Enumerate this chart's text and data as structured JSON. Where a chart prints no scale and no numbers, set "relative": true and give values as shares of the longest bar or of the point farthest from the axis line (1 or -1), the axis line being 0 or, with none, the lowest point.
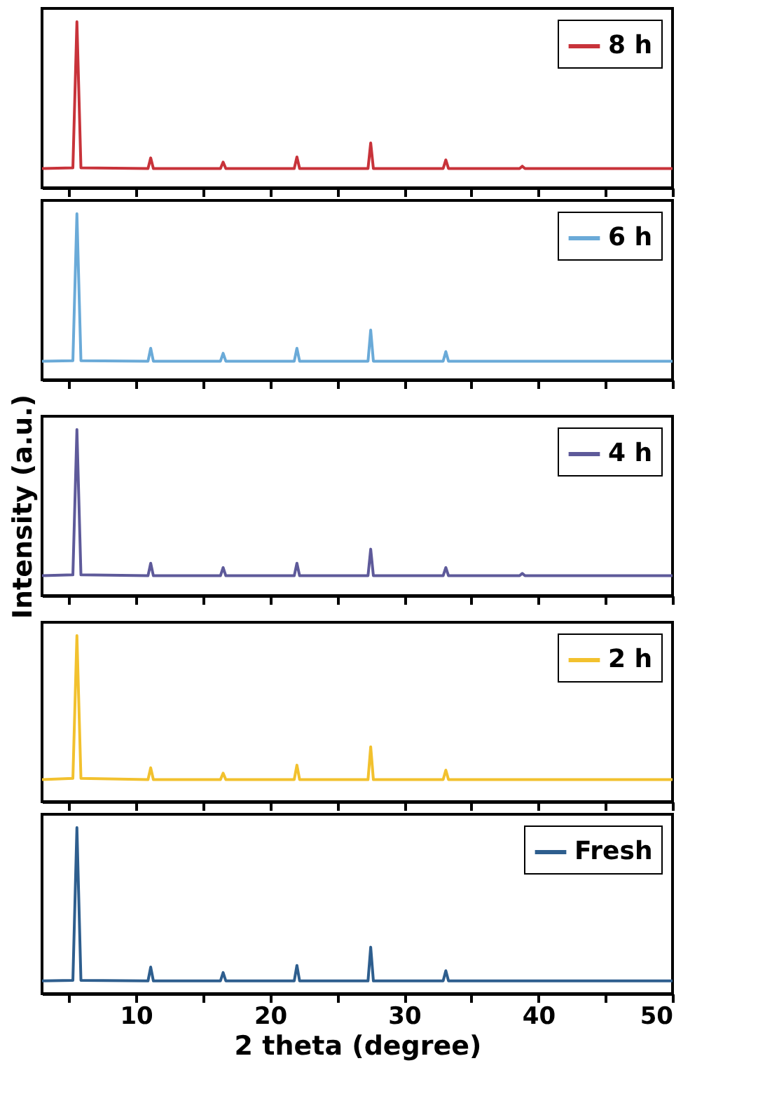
{
  "chart_data": [
    {
      "type": "line",
      "relative": true,
      "x": [
        3,
        5.3,
        5.6,
        5.9,
        10.9,
        11.1,
        11.3,
        16.3,
        16.5,
        16.7,
        21.8,
        22.0,
        22.2,
        27.3,
        27.5,
        27.7,
        32.9,
        33.1,
        33.3,
        38.6,
        38.8,
        39.0,
        50
      ],
      "xlim": [
        3,
        50
      ],
      "xticks": [
        {
          "value": 5,
          "label": null
        },
        10,
        {
          "value": 15,
          "label": null
        },
        20,
        {
          "value": 25,
          "label": null
        },
        30,
        {
          "value": 35,
          "label": null
        },
        40,
        {
          "value": 45,
          "label": null
        },
        50
      ],
      "tick_labels": false,
      "legend": "top right",
      "series": [
        {
          "name": "8 h",
          "color": "#c8333a",
          "values": [
            0.116,
            0.12,
            1,
            0.12,
            0.116,
            0.18,
            0.116,
            0.116,
            0.155,
            0.116,
            0.116,
            0.186,
            0.116,
            0.116,
            0.27,
            0.116,
            0.116,
            0.168,
            0.116,
            0.116,
            0.13,
            0.116,
            0.116
          ]
        }
      ]
    },
    {
      "type": "line",
      "relative": true,
      "x": [
        3,
        5.3,
        5.6,
        5.9,
        10.9,
        11.1,
        11.3,
        16.3,
        16.5,
        16.7,
        21.8,
        22.0,
        22.2,
        27.3,
        27.5,
        27.7,
        32.9,
        33.1,
        33.3,
        38.6,
        38.8,
        39.0,
        50
      ],
      "xlim": [
        3,
        50
      ],
      "xticks": [
        {
          "value": 5,
          "label": null
        },
        10,
        {
          "value": 15,
          "label": null
        },
        20,
        {
          "value": 25,
          "label": null
        },
        30,
        {
          "value": 35,
          "label": null
        },
        40,
        {
          "value": 45,
          "label": null
        },
        50
      ],
      "tick_labels": false,
      "legend": "top right",
      "series": [
        {
          "name": "6 h",
          "color": "#6aaad8",
          "values": [
            0.112,
            0.115,
            1,
            0.115,
            0.112,
            0.19,
            0.112,
            0.112,
            0.16,
            0.112,
            0.112,
            0.19,
            0.112,
            0.112,
            0.3,
            0.112,
            0.112,
            0.17,
            0.112,
            0.112,
            0.112,
            0.112,
            0.112
          ]
        }
      ]
    },
    {
      "type": "line",
      "relative": true,
      "ylabel": "Intensity (a.u.)",
      "x": [
        3,
        5.3,
        5.6,
        5.9,
        10.9,
        11.1,
        11.3,
        16.3,
        16.5,
        16.7,
        21.8,
        22.0,
        22.2,
        27.3,
        27.5,
        27.7,
        32.9,
        33.1,
        33.3,
        38.6,
        38.8,
        39.0,
        50
      ],
      "xlim": [
        3,
        50
      ],
      "xticks": [
        {
          "value": 5,
          "label": null
        },
        10,
        {
          "value": 15,
          "label": null
        },
        20,
        {
          "value": 25,
          "label": null
        },
        30,
        {
          "value": 35,
          "label": null
        },
        40,
        {
          "value": 45,
          "label": null
        },
        50
      ],
      "tick_labels": false,
      "legend": "top right",
      "series": [
        {
          "name": "4 h",
          "color": "#5e5a9a",
          "values": [
            0.12,
            0.125,
            1,
            0.125,
            0.12,
            0.195,
            0.12,
            0.12,
            0.169,
            0.12,
            0.12,
            0.195,
            0.12,
            0.12,
            0.28,
            0.12,
            0.12,
            0.169,
            0.12,
            0.12,
            0.134,
            0.12,
            0.12
          ]
        }
      ]
    },
    {
      "type": "line",
      "relative": true,
      "x": [
        3,
        5.3,
        5.6,
        5.9,
        10.9,
        11.1,
        11.3,
        16.3,
        16.5,
        16.7,
        21.8,
        22.0,
        22.2,
        27.3,
        27.5,
        27.7,
        32.9,
        33.1,
        33.3,
        38.6,
        38.8,
        39.0,
        50
      ],
      "xlim": [
        3,
        50
      ],
      "xticks": [
        {
          "value": 5,
          "label": null
        },
        10,
        {
          "value": 15,
          "label": null
        },
        20,
        {
          "value": 25,
          "label": null
        },
        30,
        {
          "value": 35,
          "label": null
        },
        40,
        {
          "value": 45,
          "label": null
        },
        50
      ],
      "tick_labels": false,
      "legend": "top right",
      "series": [
        {
          "name": "2 h",
          "color": "#f2c12e",
          "values": [
            0.133,
            0.14,
            1,
            0.14,
            0.133,
            0.204,
            0.133,
            0.133,
            0.172,
            0.133,
            0.133,
            0.22,
            0.133,
            0.133,
            0.33,
            0.133,
            0.133,
            0.19,
            0.133,
            0.133,
            0.133,
            0.133,
            0.133
          ]
        }
      ]
    },
    {
      "type": "line",
      "relative": true,
      "xlabel": "2 theta (degree)",
      "x": [
        3,
        5.3,
        5.6,
        5.9,
        10.9,
        11.1,
        11.3,
        16.3,
        16.5,
        16.7,
        21.8,
        22.0,
        22.2,
        27.3,
        27.5,
        27.7,
        32.9,
        33.1,
        33.3,
        38.6,
        38.8,
        39.0,
        50
      ],
      "xlim": [
        3,
        50
      ],
      "xticks": [
        {
          "value": 5,
          "label": null
        },
        10,
        {
          "value": 15,
          "label": null
        },
        20,
        {
          "value": 25,
          "label": null
        },
        30,
        {
          "value": 35,
          "label": null
        },
        40,
        {
          "value": 45,
          "label": null
        },
        50
      ],
      "tick_labels": "x",
      "legend": "top right",
      "series": [
        {
          "name": "Fresh",
          "color": "#2e5e8e",
          "values": [
            0.077,
            0.08,
            1,
            0.08,
            0.077,
            0.16,
            0.077,
            0.077,
            0.127,
            0.077,
            0.077,
            0.17,
            0.077,
            0.077,
            0.28,
            0.077,
            0.077,
            0.138,
            0.077,
            0.077,
            0.077,
            0.077,
            0.077
          ]
        }
      ]
    }
  ]
}
